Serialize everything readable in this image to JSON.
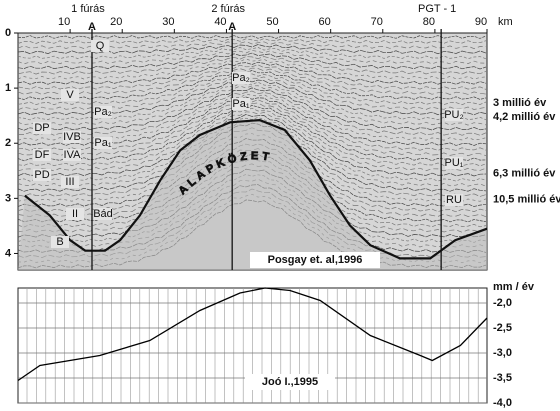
{
  "chart_data": [
    {
      "type": "seismic",
      "x_label": "km",
      "xlim": [
        0,
        90
      ],
      "xticks": [
        10,
        20,
        30,
        40,
        50,
        60,
        70,
        80,
        90
      ],
      "ylim": [
        0,
        4.3
      ],
      "yticks": [
        0,
        1,
        2,
        3,
        4
      ],
      "wells": [
        {
          "name": "1 fúrás",
          "section": "A",
          "x": 14.2
        },
        {
          "name": "2 fúrás",
          "section": "A",
          "x": 41.1
        },
        {
          "name": "PGT - 1",
          "x": 81.2
        }
      ],
      "age_labels": [
        {
          "text": "3 millió év",
          "y": 1.27
        },
        {
          "text": "4,2 millió év",
          "y": 1.53
        },
        {
          "text": "6,3 millió év",
          "y": 2.55
        },
        {
          "text": "10,5 millió év",
          "y": 3.02
        }
      ],
      "horizon_labels": [
        "Q",
        "V",
        "DP",
        "DF",
        "PD",
        "IVB",
        "IVA",
        "III",
        "II",
        "B",
        "Pa₂",
        "Pa₁",
        "Bád",
        "Pa₂",
        "Pa₁",
        "PU₂",
        "PU₁",
        "RU"
      ],
      "basement": {
        "name": "ALAPKÖZET",
        "color": "#111111",
        "x": [
          1.3,
          6.1,
          10.0,
          12.9,
          16.7,
          19.6,
          23.4,
          27.3,
          31.1,
          34.9,
          40.7,
          46.4,
          51.2,
          56.0,
          59.9,
          63.7,
          67.6,
          73.3,
          79.1,
          83.9,
          90
        ],
        "values": [
          2.95,
          3.31,
          3.76,
          3.95,
          3.95,
          3.76,
          3.31,
          2.67,
          2.13,
          1.85,
          1.62,
          1.58,
          1.76,
          2.31,
          2.95,
          3.49,
          3.85,
          4.09,
          4.09,
          3.76,
          3.55
        ]
      },
      "credit": "Posgay et. al,1996"
    },
    {
      "type": "line",
      "y_label": "mm / év",
      "xlim": [
        0,
        90
      ],
      "ylim": [
        -4.0,
        -1.7
      ],
      "yticks": [
        {
          "value": -2.0,
          "label": "-2,0"
        },
        {
          "value": -2.5,
          "label": "-2,5"
        },
        {
          "value": -3.0,
          "label": "-3,0"
        },
        {
          "value": -3.5,
          "label": "-3,5"
        },
        {
          "value": -4.0,
          "label": "-4,0"
        }
      ],
      "x": [
        0,
        4.2,
        15.7,
        25.3,
        34.9,
        42.6,
        47.4,
        52.2,
        58.0,
        67.6,
        77.2,
        79.5,
        84.9,
        90
      ],
      "values": [
        -3.55,
        -3.25,
        -3.05,
        -2.75,
        -2.15,
        -1.8,
        -1.7,
        -1.75,
        -1.95,
        -2.65,
        -3.05,
        -3.15,
        -2.85,
        -2.3
      ],
      "color": "#000000",
      "credit": "Joó I.,1995"
    }
  ]
}
